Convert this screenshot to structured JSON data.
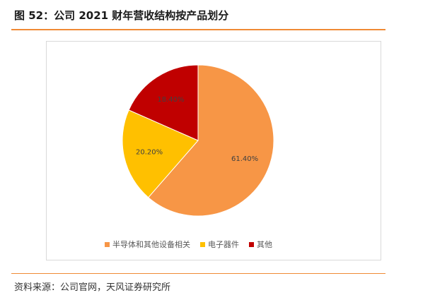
{
  "figure": {
    "title": "图 52：公司 2021 财年营收结构按产品划分",
    "source": "资料来源：公司官网，天风证券研究所"
  },
  "chart_data": {
    "type": "pie",
    "title": "",
    "slices": [
      {
        "name": "半导体和其他设备相关",
        "value": 61.4,
        "label": "61.40%",
        "color": "#f79646"
      },
      {
        "name": "电子器件",
        "value": 20.2,
        "label": "20.20%",
        "color": "#ffc000"
      },
      {
        "name": "其他",
        "value": 18.4,
        "label": "18.40%",
        "color": "#c00000"
      }
    ],
    "start_angle": "12 o'clock",
    "direction": "clockwise",
    "legend_position": "bottom"
  }
}
